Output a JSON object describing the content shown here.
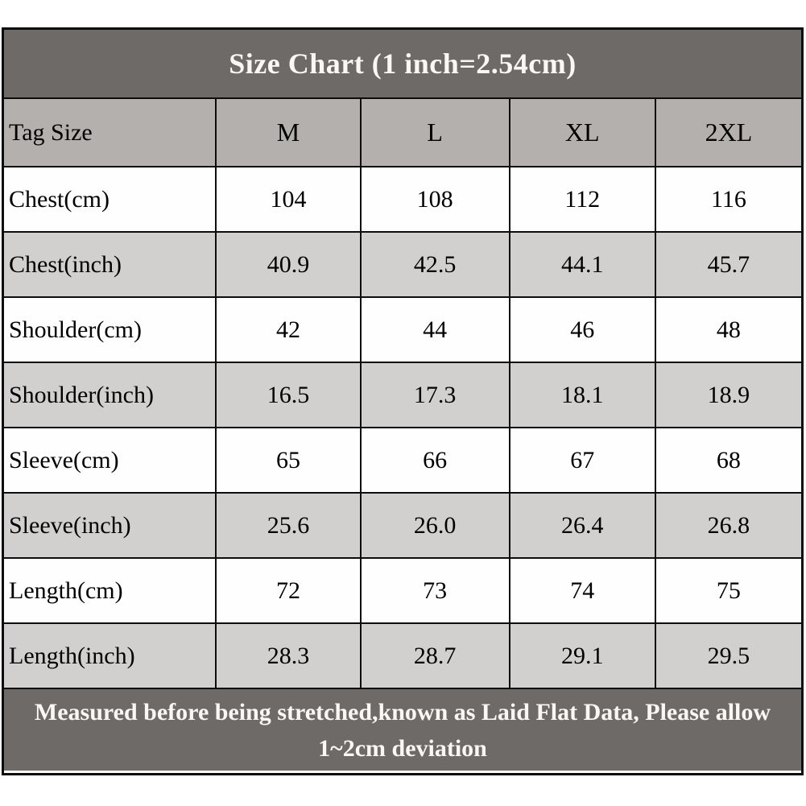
{
  "title": "Size Chart (1 inch=2.54cm)",
  "footer_note": "Measured before being stretched,known as Laid Flat Data, Please allow 1~2cm deviation",
  "colors": {
    "title_footer_bg": "#6e6a67",
    "header_row_bg": "#b3b0ad",
    "alt_row_bg": "#d2d0ce",
    "white_row_bg": "#fefefe",
    "border": "#0d0d0d",
    "light_text": "#faf8f6",
    "dark_text": "#000000"
  },
  "table": {
    "corner_label": "Tag Size",
    "sizes": [
      "M",
      "L",
      "XL",
      "2XL"
    ],
    "rows": [
      {
        "label": "Chest(cm)",
        "values": [
          "104",
          "108",
          "112",
          "116"
        ]
      },
      {
        "label": "Chest(inch)",
        "values": [
          "40.9",
          "42.5",
          "44.1",
          "45.7"
        ]
      },
      {
        "label": "Shoulder(cm)",
        "values": [
          "42",
          "44",
          "46",
          "48"
        ]
      },
      {
        "label": "Shoulder(inch)",
        "values": [
          "16.5",
          "17.3",
          "18.1",
          "18.9"
        ]
      },
      {
        "label": "Sleeve(cm)",
        "values": [
          "65",
          "66",
          "67",
          "68"
        ]
      },
      {
        "label": "Sleeve(inch)",
        "values": [
          "25.6",
          "26.0",
          "26.4",
          "26.8"
        ]
      },
      {
        "label": "Length(cm)",
        "values": [
          "72",
          "73",
          "74",
          "75"
        ]
      },
      {
        "label": "Length(inch)",
        "values": [
          "28.3",
          "28.7",
          "29.1",
          "29.5"
        ]
      }
    ]
  },
  "chart_data": {
    "type": "table",
    "title": "Size Chart (1 inch=2.54cm)",
    "columns": [
      "Tag Size",
      "M",
      "L",
      "XL",
      "2XL"
    ],
    "rows": [
      [
        "Chest(cm)",
        104,
        108,
        112,
        116
      ],
      [
        "Chest(inch)",
        40.9,
        42.5,
        44.1,
        45.7
      ],
      [
        "Shoulder(cm)",
        42,
        44,
        46,
        48
      ],
      [
        "Shoulder(inch)",
        16.5,
        17.3,
        18.1,
        18.9
      ],
      [
        "Sleeve(cm)",
        65,
        66,
        67,
        68
      ],
      [
        "Sleeve(inch)",
        25.6,
        26.0,
        26.4,
        26.8
      ],
      [
        "Length(cm)",
        72,
        73,
        74,
        75
      ],
      [
        "Length(inch)",
        28.3,
        28.7,
        29.1,
        29.5
      ]
    ],
    "footnote": "Measured before being stretched,known as Laid Flat Data, Please allow 1~2cm deviation"
  }
}
